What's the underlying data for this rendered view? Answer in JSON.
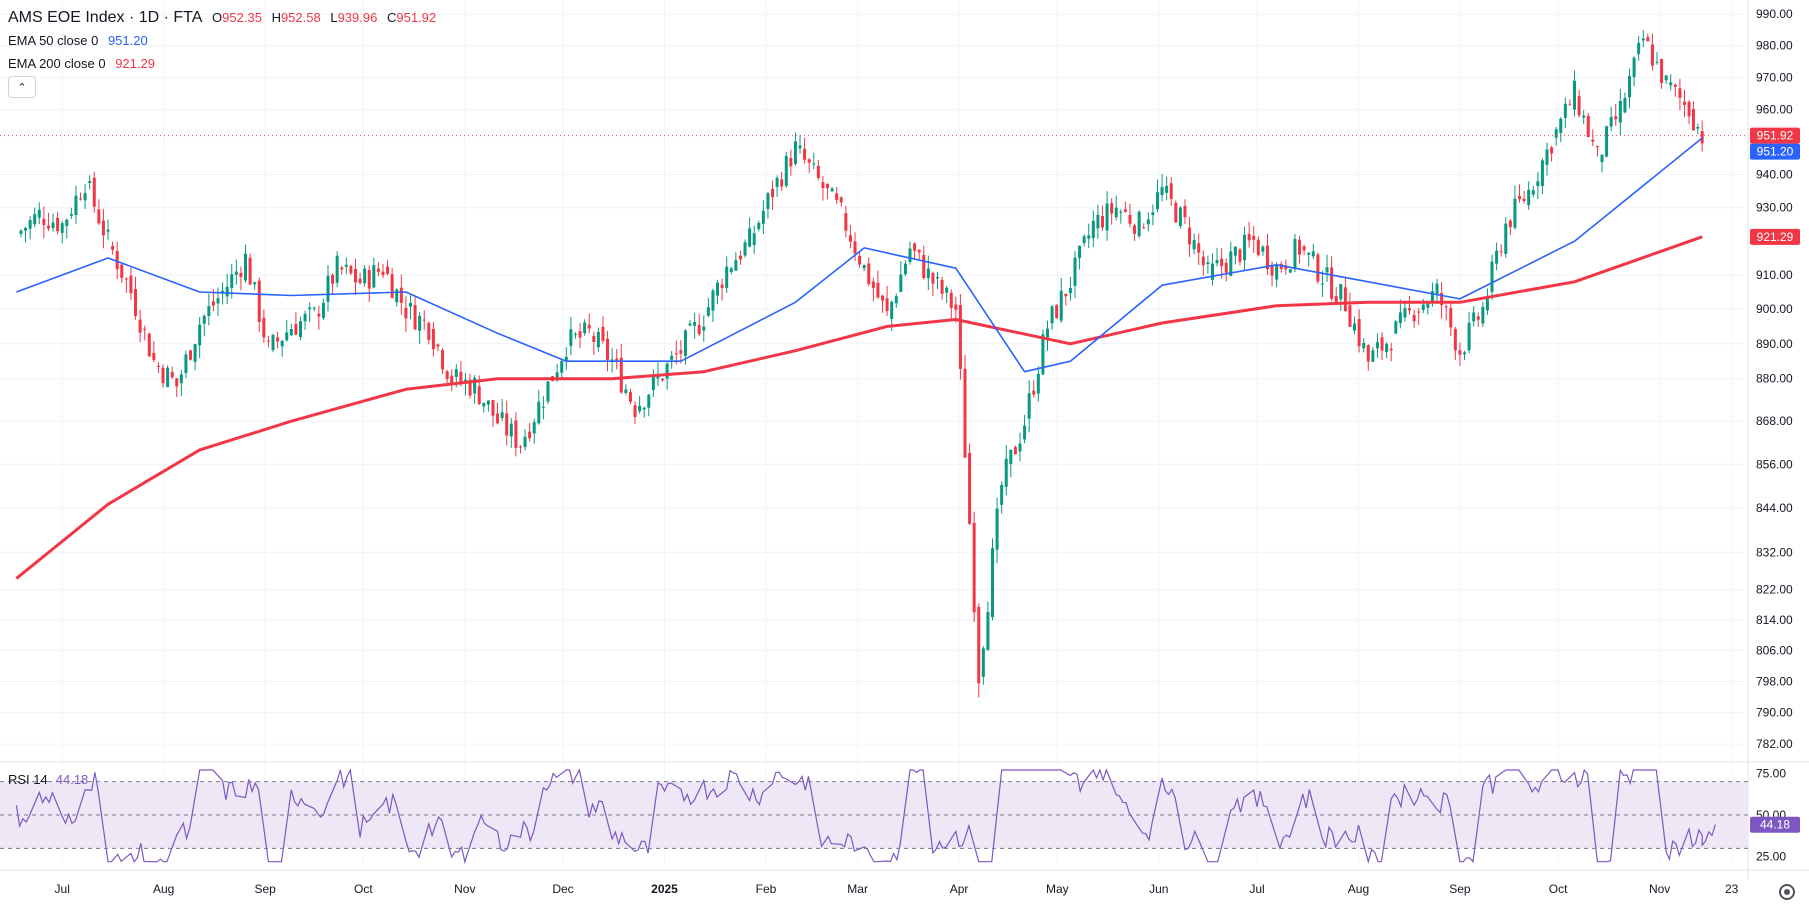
{
  "legend": {
    "symbol": "AMS EOE Index · 1D · FTA",
    "open_key": "O",
    "open": "952.35",
    "high_key": "H",
    "high": "952.58",
    "low_key": "L",
    "low": "939.96",
    "close_key": "C",
    "close": "951.92",
    "ema50_label": "EMA 50 close 0",
    "ema50_value": "951.20",
    "ema200_label": "EMA 200 close 0",
    "ema200_value": "921.29",
    "collapse_icon": "chevron-up-icon"
  },
  "rsi_legend": {
    "label": "RSI 14",
    "value": "44.18"
  },
  "colors": {
    "up": "#089981",
    "down": "#f23645",
    "ema50": "#2962ff",
    "ema200": "#f23645",
    "rsi": "#7e57c2",
    "rsi_band": "#ede7f6",
    "price_tag": "#f23645"
  },
  "chart_data": {
    "type": "candlestick",
    "title": "AMS EOE Index · 1D · FTA",
    "x_ticks": [
      "Jul",
      "Aug",
      "Sep",
      "Oct",
      "Nov",
      "Dec",
      "2025",
      "Feb",
      "Mar",
      "Apr",
      "May",
      "Jun",
      "Jul",
      "Aug",
      "Sep",
      "Oct",
      "Nov",
      "23"
    ],
    "y_ticks": [
      "990.00",
      "980.00",
      "970.00",
      "960.00",
      "940.00",
      "930.00",
      "910.00",
      "900.00",
      "890.00",
      "880.00",
      "868.00",
      "856.00",
      "844.00",
      "832.00",
      "822.00",
      "814.00",
      "806.00",
      "798.00",
      "790.00",
      "782.00"
    ],
    "ylim": [
      780,
      992
    ],
    "y_scale": "log",
    "price_tags": [
      {
        "label": "951.92",
        "value": 951.92,
        "color": "#f23645"
      },
      {
        "label": "951.20",
        "value": 951.2,
        "color": "#2962ff"
      },
      {
        "label": "921.29",
        "value": 921.29,
        "color": "#f23645"
      }
    ],
    "last_price_line": 951.92,
    "close_series_weekly": [
      {
        "x": "2024-06-17",
        "y": 922
      },
      {
        "x": "2024-06-24",
        "y": 928
      },
      {
        "x": "2024-07-01",
        "y": 925
      },
      {
        "x": "2024-07-08",
        "y": 938
      },
      {
        "x": "2024-07-15",
        "y": 920
      },
      {
        "x": "2024-07-22",
        "y": 905
      },
      {
        "x": "2024-07-29",
        "y": 885
      },
      {
        "x": "2024-08-05",
        "y": 878
      },
      {
        "x": "2024-08-12",
        "y": 896
      },
      {
        "x": "2024-08-19",
        "y": 905
      },
      {
        "x": "2024-08-26",
        "y": 915
      },
      {
        "x": "2024-09-02",
        "y": 888
      },
      {
        "x": "2024-09-09",
        "y": 895
      },
      {
        "x": "2024-09-16",
        "y": 898
      },
      {
        "x": "2024-09-23",
        "y": 912
      },
      {
        "x": "2024-09-30",
        "y": 908
      },
      {
        "x": "2024-10-07",
        "y": 912
      },
      {
        "x": "2024-10-14",
        "y": 900
      },
      {
        "x": "2024-10-21",
        "y": 895
      },
      {
        "x": "2024-10-28",
        "y": 880
      },
      {
        "x": "2024-11-04",
        "y": 878
      },
      {
        "x": "2024-11-11",
        "y": 868
      },
      {
        "x": "2024-11-18",
        "y": 862
      },
      {
        "x": "2024-11-25",
        "y": 875
      },
      {
        "x": "2024-12-02",
        "y": 890
      },
      {
        "x": "2024-12-09",
        "y": 893
      },
      {
        "x": "2024-12-16",
        "y": 885
      },
      {
        "x": "2024-12-23",
        "y": 872
      },
      {
        "x": "2024-12-30",
        "y": 880
      },
      {
        "x": "2025-01-06",
        "y": 888
      },
      {
        "x": "2025-01-13",
        "y": 898
      },
      {
        "x": "2025-01-20",
        "y": 912
      },
      {
        "x": "2025-01-27",
        "y": 920
      },
      {
        "x": "2025-02-03",
        "y": 935
      },
      {
        "x": "2025-02-10",
        "y": 948
      },
      {
        "x": "2025-02-17",
        "y": 938
      },
      {
        "x": "2025-02-24",
        "y": 928
      },
      {
        "x": "2025-03-03",
        "y": 912
      },
      {
        "x": "2025-03-10",
        "y": 898
      },
      {
        "x": "2025-03-17",
        "y": 918
      },
      {
        "x": "2025-03-24",
        "y": 908
      },
      {
        "x": "2025-03-31",
        "y": 900
      },
      {
        "x": "2025-04-07",
        "y": 800
      },
      {
        "x": "2025-04-14",
        "y": 850
      },
      {
        "x": "2025-04-21",
        "y": 868
      },
      {
        "x": "2025-04-28",
        "y": 895
      },
      {
        "x": "2025-05-05",
        "y": 908
      },
      {
        "x": "2025-05-12",
        "y": 925
      },
      {
        "x": "2025-05-19",
        "y": 930
      },
      {
        "x": "2025-05-26",
        "y": 925
      },
      {
        "x": "2025-06-02",
        "y": 935
      },
      {
        "x": "2025-06-09",
        "y": 925
      },
      {
        "x": "2025-06-16",
        "y": 910
      },
      {
        "x": "2025-06-23",
        "y": 915
      },
      {
        "x": "2025-06-30",
        "y": 920
      },
      {
        "x": "2025-07-07",
        "y": 912
      },
      {
        "x": "2025-07-14",
        "y": 918
      },
      {
        "x": "2025-07-21",
        "y": 910
      },
      {
        "x": "2025-07-28",
        "y": 902
      },
      {
        "x": "2025-08-04",
        "y": 885
      },
      {
        "x": "2025-08-11",
        "y": 892
      },
      {
        "x": "2025-08-18",
        "y": 900
      },
      {
        "x": "2025-08-25",
        "y": 905
      },
      {
        "x": "2025-09-01",
        "y": 888
      },
      {
        "x": "2025-09-08",
        "y": 900
      },
      {
        "x": "2025-09-15",
        "y": 925
      },
      {
        "x": "2025-09-22",
        "y": 935
      },
      {
        "x": "2025-09-29",
        "y": 950
      },
      {
        "x": "2025-10-06",
        "y": 965
      },
      {
        "x": "2025-10-13",
        "y": 945
      },
      {
        "x": "2025-10-20",
        "y": 960
      },
      {
        "x": "2025-10-27",
        "y": 982
      },
      {
        "x": "2025-11-03",
        "y": 968
      },
      {
        "x": "2025-11-10",
        "y": 960
      },
      {
        "x": "2025-11-14",
        "y": 951.92
      }
    ],
    "ema50_weekly": [
      {
        "x": "2024-06-17",
        "y": 905
      },
      {
        "x": "2024-07-15",
        "y": 915
      },
      {
        "x": "2024-08-12",
        "y": 905
      },
      {
        "x": "2024-09-09",
        "y": 904
      },
      {
        "x": "2024-10-14",
        "y": 905
      },
      {
        "x": "2024-11-11",
        "y": 893
      },
      {
        "x": "2024-12-02",
        "y": 885
      },
      {
        "x": "2025-01-06",
        "y": 885
      },
      {
        "x": "2025-02-10",
        "y": 902
      },
      {
        "x": "2025-03-03",
        "y": 918
      },
      {
        "x": "2025-03-31",
        "y": 912
      },
      {
        "x": "2025-04-21",
        "y": 882
      },
      {
        "x": "2025-05-05",
        "y": 885
      },
      {
        "x": "2025-06-02",
        "y": 907
      },
      {
        "x": "2025-07-07",
        "y": 913
      },
      {
        "x": "2025-08-04",
        "y": 908
      },
      {
        "x": "2025-09-01",
        "y": 903
      },
      {
        "x": "2025-10-06",
        "y": 920
      },
      {
        "x": "2025-11-14",
        "y": 951.2
      }
    ],
    "ema200_weekly": [
      {
        "x": "2024-06-17",
        "y": 825
      },
      {
        "x": "2024-07-15",
        "y": 845
      },
      {
        "x": "2024-08-12",
        "y": 860
      },
      {
        "x": "2024-09-09",
        "y": 868
      },
      {
        "x": "2024-10-14",
        "y": 877
      },
      {
        "x": "2024-11-11",
        "y": 880
      },
      {
        "x": "2024-12-16",
        "y": 880
      },
      {
        "x": "2025-01-13",
        "y": 882
      },
      {
        "x": "2025-02-10",
        "y": 888
      },
      {
        "x": "2025-03-10",
        "y": 895
      },
      {
        "x": "2025-03-31",
        "y": 897
      },
      {
        "x": "2025-05-05",
        "y": 890
      },
      {
        "x": "2025-06-02",
        "y": 896
      },
      {
        "x": "2025-07-07",
        "y": 901
      },
      {
        "x": "2025-08-04",
        "y": 902
      },
      {
        "x": "2025-09-01",
        "y": 902
      },
      {
        "x": "2025-10-06",
        "y": 908
      },
      {
        "x": "2025-11-14",
        "y": 921.29
      }
    ],
    "rsi": {
      "label": "RSI 14",
      "value": 44.18,
      "y_ticks": [
        "75.00",
        "50.00",
        "25.00"
      ],
      "ylim": [
        20,
        80
      ],
      "band": [
        30,
        70
      ]
    }
  }
}
